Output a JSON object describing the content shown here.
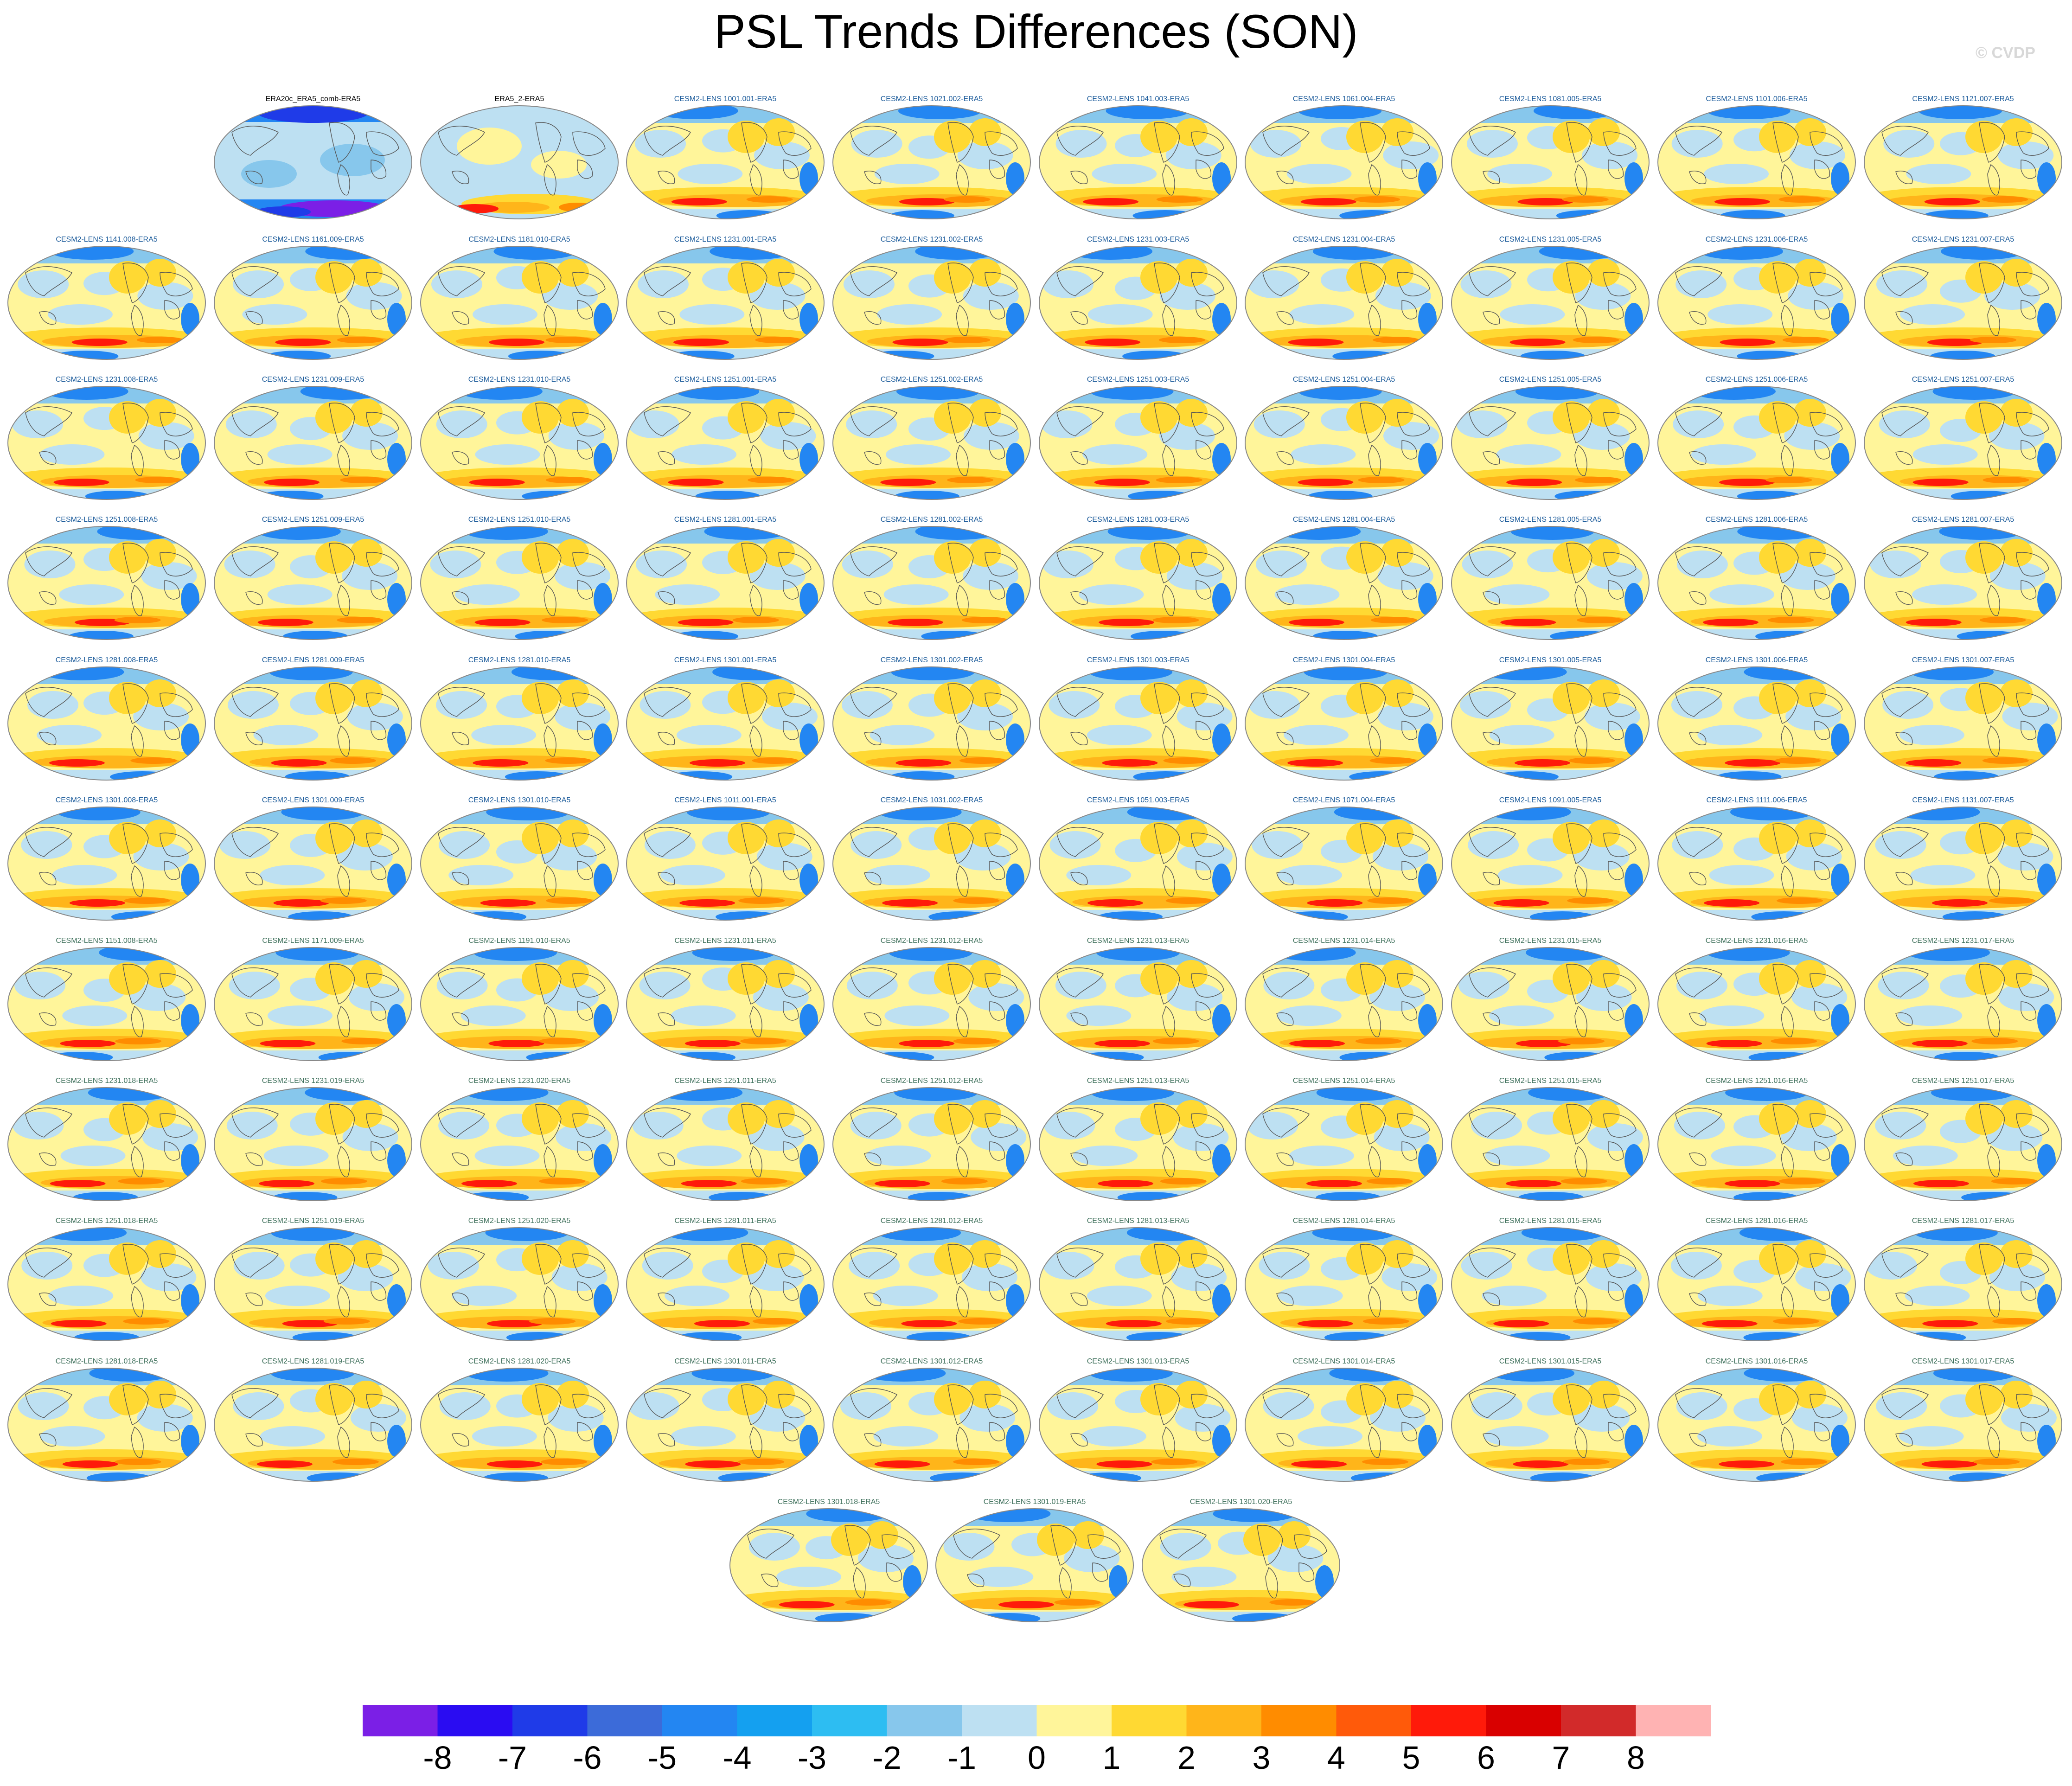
{
  "title": "PSL Trends Differences (SON)",
  "watermark": "© CVDP",
  "observations": [
    "ERA20c_ERA5_comb-ERA5",
    "ERA5_2-ERA5"
  ],
  "ensemble_rows": [
    [
      "CESM2-LENS 1001.001-ERA5",
      "CESM2-LENS 1021.002-ERA5",
      "CESM2-LENS 1041.003-ERA5",
      "CESM2-LENS 1061.004-ERA5",
      "CESM2-LENS 1081.005-ERA5",
      "CESM2-LENS 1101.006-ERA5",
      "CESM2-LENS 1121.007-ERA5"
    ],
    [
      "CESM2-LENS 1141.008-ERA5",
      "CESM2-LENS 1161.009-ERA5",
      "CESM2-LENS 1181.010-ERA5",
      "CESM2-LENS 1231.001-ERA5",
      "CESM2-LENS 1231.002-ERA5",
      "CESM2-LENS 1231.003-ERA5",
      "CESM2-LENS 1231.004-ERA5",
      "CESM2-LENS 1231.005-ERA5",
      "CESM2-LENS 1231.006-ERA5",
      "CESM2-LENS 1231.007-ERA5"
    ],
    [
      "CESM2-LENS 1231.008-ERA5",
      "CESM2-LENS 1231.009-ERA5",
      "CESM2-LENS 1231.010-ERA5",
      "CESM2-LENS 1251.001-ERA5",
      "CESM2-LENS 1251.002-ERA5",
      "CESM2-LENS 1251.003-ERA5",
      "CESM2-LENS 1251.004-ERA5",
      "CESM2-LENS 1251.005-ERA5",
      "CESM2-LENS 1251.006-ERA5",
      "CESM2-LENS 1251.007-ERA5"
    ],
    [
      "CESM2-LENS 1251.008-ERA5",
      "CESM2-LENS 1251.009-ERA5",
      "CESM2-LENS 1251.010-ERA5",
      "CESM2-LENS 1281.001-ERA5",
      "CESM2-LENS 1281.002-ERA5",
      "CESM2-LENS 1281.003-ERA5",
      "CESM2-LENS 1281.004-ERA5",
      "CESM2-LENS 1281.005-ERA5",
      "CESM2-LENS 1281.006-ERA5",
      "CESM2-LENS 1281.007-ERA5"
    ],
    [
      "CESM2-LENS 1281.008-ERA5",
      "CESM2-LENS 1281.009-ERA5",
      "CESM2-LENS 1281.010-ERA5",
      "CESM2-LENS 1301.001-ERA5",
      "CESM2-LENS 1301.002-ERA5",
      "CESM2-LENS 1301.003-ERA5",
      "CESM2-LENS 1301.004-ERA5",
      "CESM2-LENS 1301.005-ERA5",
      "CESM2-LENS 1301.006-ERA5",
      "CESM2-LENS 1301.007-ERA5"
    ],
    [
      "CESM2-LENS 1301.008-ERA5",
      "CESM2-LENS 1301.009-ERA5",
      "CESM2-LENS 1301.010-ERA5",
      "CESM2-LENS 1011.001-ERA5",
      "CESM2-LENS 1031.002-ERA5",
      "CESM2-LENS 1051.003-ERA5",
      "CESM2-LENS 1071.004-ERA5",
      "CESM2-LENS 1091.005-ERA5",
      "CESM2-LENS 1111.006-ERA5",
      "CESM2-LENS 1131.007-ERA5"
    ],
    [
      "CESM2-LENS 1151.008-ERA5",
      "CESM2-LENS 1171.009-ERA5",
      "CESM2-LENS 1191.010-ERA5",
      "CESM2-LENS 1231.011-ERA5",
      "CESM2-LENS 1231.012-ERA5",
      "CESM2-LENS 1231.013-ERA5",
      "CESM2-LENS 1231.014-ERA5",
      "CESM2-LENS 1231.015-ERA5",
      "CESM2-LENS 1231.016-ERA5",
      "CESM2-LENS 1231.017-ERA5"
    ],
    [
      "CESM2-LENS 1231.018-ERA5",
      "CESM2-LENS 1231.019-ERA5",
      "CESM2-LENS 1231.020-ERA5",
      "CESM2-LENS 1251.011-ERA5",
      "CESM2-LENS 1251.012-ERA5",
      "CESM2-LENS 1251.013-ERA5",
      "CESM2-LENS 1251.014-ERA5",
      "CESM2-LENS 1251.015-ERA5",
      "CESM2-LENS 1251.016-ERA5",
      "CESM2-LENS 1251.017-ERA5"
    ],
    [
      "CESM2-LENS 1251.018-ERA5",
      "CESM2-LENS 1251.019-ERA5",
      "CESM2-LENS 1251.020-ERA5",
      "CESM2-LENS 1281.011-ERA5",
      "CESM2-LENS 1281.012-ERA5",
      "CESM2-LENS 1281.013-ERA5",
      "CESM2-LENS 1281.014-ERA5",
      "CESM2-LENS 1281.015-ERA5",
      "CESM2-LENS 1281.016-ERA5",
      "CESM2-LENS 1281.017-ERA5"
    ],
    [
      "CESM2-LENS 1281.018-ERA5",
      "CESM2-LENS 1281.019-ERA5",
      "CESM2-LENS 1281.020-ERA5",
      "CESM2-LENS 1301.011-ERA5",
      "CESM2-LENS 1301.012-ERA5",
      "CESM2-LENS 1301.013-ERA5",
      "CESM2-LENS 1301.014-ERA5",
      "CESM2-LENS 1301.015-ERA5",
      "CESM2-LENS 1301.016-ERA5",
      "CESM2-LENS 1301.017-ERA5"
    ],
    [
      "CESM2-LENS 1301.018-ERA5",
      "CESM2-LENS 1301.019-ERA5",
      "CESM2-LENS 1301.020-ERA5"
    ]
  ],
  "colorbar": {
    "labels": [
      "-8",
      "-7",
      "-6",
      "-5",
      "-4",
      "-3",
      "-2",
      "-1",
      "0",
      "1",
      "2",
      "3",
      "4",
      "5",
      "6",
      "7",
      "8"
    ],
    "colors": [
      "#7b1fe6",
      "#2a0cf2",
      "#1f3be8",
      "#3c6bd9",
      "#2386f2",
      "#14a0f0",
      "#2dbdf2",
      "#87c7ec",
      "#bde0f2",
      "#fff59a",
      "#ffd933",
      "#ffb51a",
      "#ff8c00",
      "#ff5a0a",
      "#ff1a0a",
      "#d90000",
      "#d22a2a",
      "#ffb3b3"
    ]
  },
  "palette": {
    "ocean": "#bde0f2",
    "pale_yellow": "#fff59a",
    "yellow": "#ffd933",
    "orange": "#ffb51a",
    "dark_orange": "#ff8c00",
    "red": "#ff1a0a",
    "light_blue": "#87c7ec",
    "blue": "#2386f2",
    "deep_blue": "#1f3be8",
    "purple": "#7b1fe6",
    "coast": "#555555",
    "rim": "#888888"
  }
}
